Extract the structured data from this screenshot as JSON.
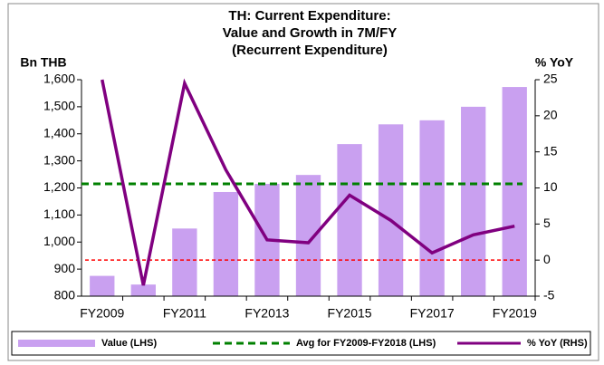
{
  "chart_data": {
    "type": "bar_line",
    "title_lines": [
      "TH: Current Expenditure:",
      "Value and Growth in 7M/FY",
      "(Recurrent Expenditure)"
    ],
    "y_label": "Bn THB",
    "y2_label": "% YoY",
    "categories": [
      "FY2009",
      null,
      "FY2011",
      null,
      "FY2013",
      null,
      "FY2015",
      null,
      "FY2017",
      null,
      "FY2019"
    ],
    "series": [
      {
        "name": "Value (LHS)",
        "type": "bar",
        "color": "#c9a0f0",
        "axis": "y",
        "values": [
          875,
          843,
          1050,
          1185,
          1215,
          1248,
          1362,
          1435,
          1450,
          1500,
          1573
        ]
      },
      {
        "name": "Avg for FY2009-FY2018 (LHS)",
        "type": "hline",
        "color": "#008000",
        "axis": "y",
        "value": 1215
      },
      {
        "name": "% YoY (RHS)",
        "type": "line",
        "color": "#800080",
        "axis": "y2",
        "values": [
          25,
          -3.5,
          24.5,
          12.5,
          2.8,
          2.4,
          9,
          5.5,
          1,
          3.5,
          4.7
        ]
      }
    ],
    "reference_line": {
      "value": 0,
      "axis": "y2",
      "color": "#ff0000"
    },
    "ylim": [
      800,
      1600
    ],
    "yticks": [
      800,
      900,
      {
        "value": 1000,
        "label": "1,000"
      },
      {
        "value": 1100,
        "label": "1,100"
      },
      {
        "value": 1200,
        "label": "1,200"
      },
      {
        "value": 1300,
        "label": "1,300"
      },
      {
        "value": 1400,
        "label": "1,400"
      },
      {
        "value": 1500,
        "label": "1,500"
      },
      {
        "value": 1600,
        "label": "1,600"
      }
    ],
    "y2lim": [
      -5,
      25
    ],
    "y2ticks": [
      -5,
      0,
      5,
      10,
      15,
      20,
      25
    ],
    "legend": "bottom"
  }
}
